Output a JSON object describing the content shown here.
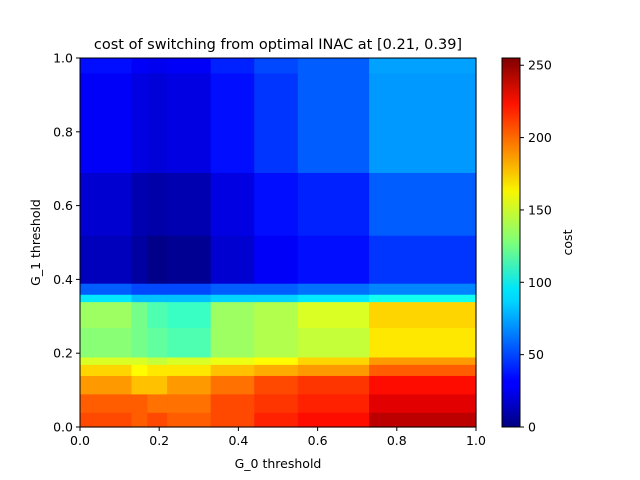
{
  "chart_data": {
    "type": "heatmap",
    "title": "cost of switching from optimal INAC at [0.21, 0.39]",
    "xlabel": "G_0 threshold",
    "ylabel": "G_1 threshold",
    "colorbar_label": "cost",
    "colormap": "jet",
    "xlim": [
      0,
      1
    ],
    "ylim": [
      0,
      1
    ],
    "clim": [
      0,
      255
    ],
    "x_ticks": [
      "0.0",
      "0.2",
      "0.4",
      "0.6",
      "0.8",
      "1.0"
    ],
    "y_ticks": [
      "0.0",
      "0.2",
      "0.4",
      "0.6",
      "0.8",
      "1.0"
    ],
    "colorbar_ticks": [
      "0",
      "50",
      "100",
      "150",
      "200",
      "250"
    ],
    "colorbar_tick_values": [
      0,
      50,
      100,
      150,
      200,
      250
    ],
    "x_edges": [
      0.0,
      0.13,
      0.17,
      0.22,
      0.33,
      0.44,
      0.55,
      0.73,
      1.0
    ],
    "y_edges": [
      0.0,
      0.04,
      0.09,
      0.14,
      0.17,
      0.19,
      0.27,
      0.34,
      0.36,
      0.39,
      0.52,
      0.69,
      0.96,
      1.0
    ],
    "values": [
      [
        205,
        200,
        205,
        200,
        205,
        215,
        220,
        240
      ],
      [
        200,
        200,
        195,
        195,
        205,
        210,
        215,
        230
      ],
      [
        185,
        175,
        175,
        185,
        195,
        205,
        210,
        220
      ],
      [
        170,
        160,
        165,
        165,
        175,
        180,
        185,
        200
      ],
      [
        150,
        150,
        145,
        150,
        155,
        160,
        170,
        185
      ],
      [
        130,
        125,
        120,
        115,
        135,
        140,
        145,
        165
      ],
      [
        135,
        125,
        115,
        110,
        135,
        140,
        150,
        170
      ],
      [
        90,
        80,
        80,
        80,
        85,
        85,
        90,
        100
      ],
      [
        55,
        50,
        50,
        50,
        55,
        55,
        60,
        65
      ],
      [
        15,
        8,
        2,
        5,
        20,
        30,
        35,
        45
      ],
      [
        20,
        12,
        10,
        12,
        25,
        35,
        40,
        55
      ],
      [
        30,
        25,
        22,
        25,
        35,
        45,
        55,
        70
      ],
      [
        35,
        30,
        28,
        30,
        40,
        50,
        55,
        72
      ]
    ]
  }
}
